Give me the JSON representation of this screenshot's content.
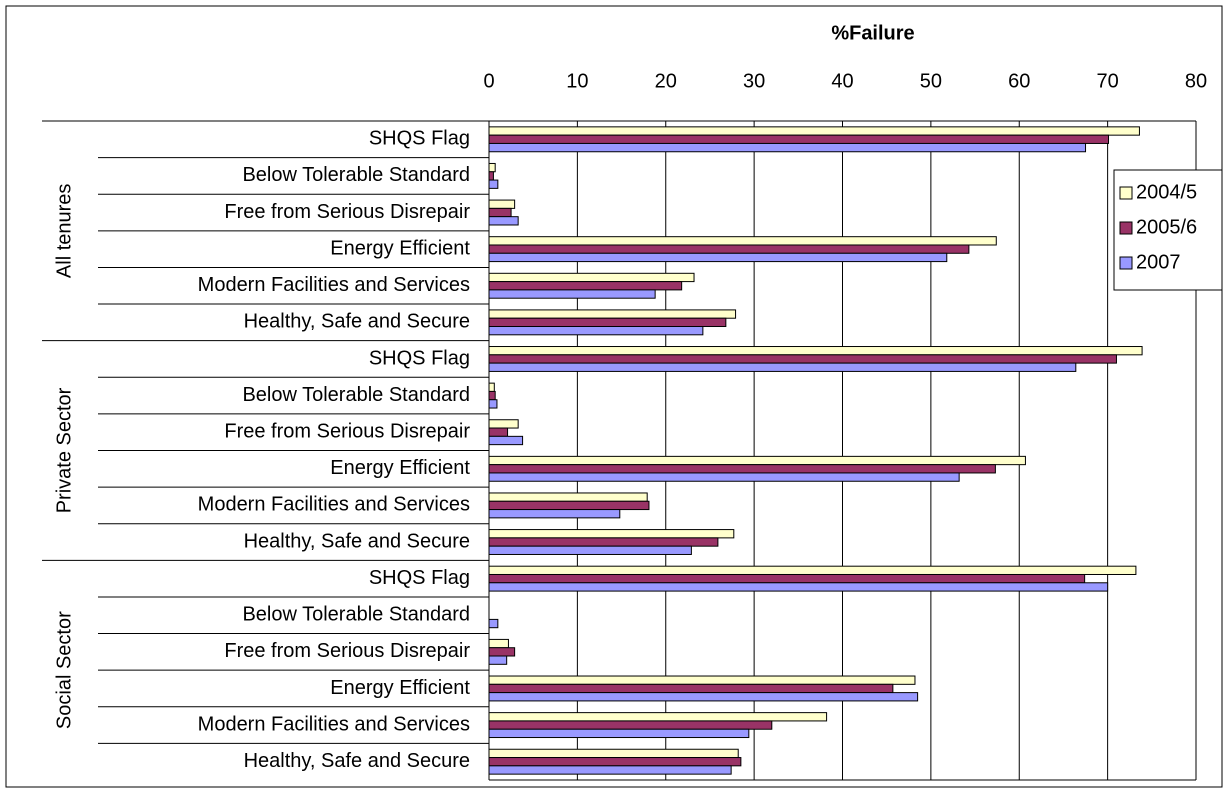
{
  "chart_data": {
    "type": "bar",
    "orientation": "horizontal",
    "title": "%Failure",
    "groups": [
      "All tenures",
      "Private Sector",
      "Social Sector"
    ],
    "categories": [
      "SHQS Flag",
      "Below Tolerable Standard",
      "Free from Serious Disrepair",
      "Energy Efficient",
      "Modern Facilities and Services",
      "Healthy, Safe and Secure",
      "SHQS Flag",
      "Below Tolerable Standard",
      "Free from Serious Disrepair",
      "Energy Efficient",
      "Modern Facilities and Services",
      "Healthy, Safe and Secure",
      "SHQS Flag",
      "Below Tolerable Standard",
      "Free from Serious Disrepair",
      "Energy Efficient",
      "Modern Facilities and Services",
      "Healthy, Safe and Secure"
    ],
    "series": [
      {
        "name": "2004/5",
        "color": "#FFFFCC",
        "values": [
          73.6,
          0.7,
          2.9,
          57.4,
          23.2,
          27.9,
          73.9,
          0.6,
          3.3,
          60.7,
          17.9,
          27.7,
          73.2,
          0,
          2.2,
          48.2,
          38.2,
          28.2
        ]
      },
      {
        "name": "2005/6",
        "color": "#993366",
        "values": [
          70.1,
          0.5,
          2.5,
          54.3,
          21.8,
          26.8,
          71.0,
          0.7,
          2.1,
          57.3,
          18.1,
          25.9,
          67.4,
          0,
          2.9,
          45.7,
          32.0,
          28.5
        ]
      },
      {
        "name": "2007",
        "color": "#9999FF",
        "values": [
          67.5,
          1.0,
          3.3,
          51.8,
          18.8,
          24.2,
          66.4,
          0.9,
          3.8,
          53.2,
          14.8,
          22.9,
          70.0,
          1.0,
          2.0,
          48.5,
          29.4,
          27.4
        ]
      }
    ],
    "xlim": [
      0,
      80
    ],
    "xticks": [
      0,
      10,
      20,
      30,
      40,
      50,
      60,
      70,
      80
    ],
    "grid": true,
    "legend": "right"
  }
}
